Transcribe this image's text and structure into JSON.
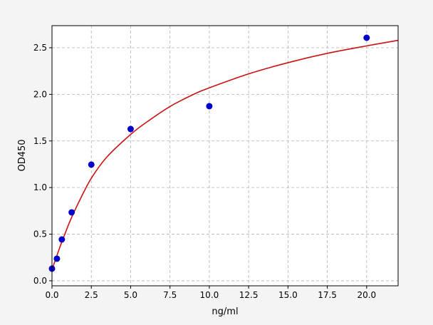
{
  "chart_data": {
    "type": "scatter",
    "xlabel": "ng/ml",
    "ylabel": "OD450",
    "xlim": [
      0,
      22
    ],
    "ylim": [
      -0.054,
      2.737
    ],
    "xticks": [
      0.0,
      2.5,
      5.0,
      7.5,
      10.0,
      12.5,
      15.0,
      17.5,
      20.0
    ],
    "xtick_labels": [
      "0.0",
      "2.5",
      "5.0",
      "7.5",
      "10.0",
      "12.5",
      "15.0",
      "17.5",
      "20.0"
    ],
    "yticks": [
      0.0,
      0.5,
      1.0,
      1.5,
      2.0,
      2.5
    ],
    "ytick_labels": [
      "0.0",
      "0.5",
      "1.0",
      "1.5",
      "2.0",
      "2.5"
    ],
    "grid": true,
    "points": {
      "color": "#0000cc",
      "x": [
        0,
        0.3125,
        0.625,
        1.25,
        2.5,
        5,
        10,
        20
      ],
      "y": [
        0.13,
        0.237,
        0.443,
        0.734,
        1.246,
        1.628,
        1.873,
        2.607
      ]
    },
    "fit_curve": {
      "color": "#cc1111",
      "x": [
        0,
        0.25,
        0.5,
        0.75,
        1,
        1.25,
        1.75,
        2.5,
        3.5,
        5,
        6,
        7.5,
        9,
        10,
        12.5,
        15,
        17.5,
        20,
        22
      ],
      "y": [
        0.12,
        0.24,
        0.36,
        0.47,
        0.58,
        0.68,
        0.86,
        1.1,
        1.33,
        1.57,
        1.7,
        1.87,
        2.0,
        2.07,
        2.22,
        2.34,
        2.44,
        2.52,
        2.58
      ]
    }
  }
}
